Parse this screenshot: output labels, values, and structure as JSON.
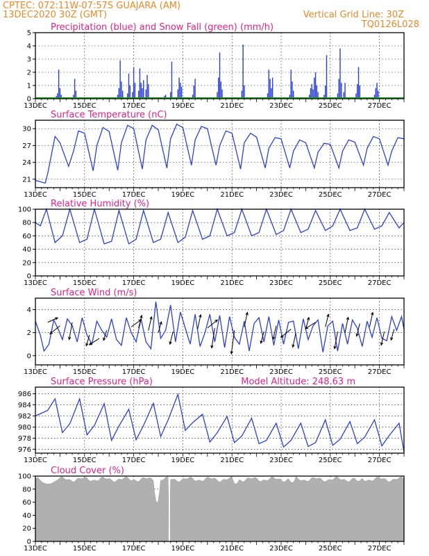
{
  "header": {
    "line1_left": "CPTEC:   072:11W-07:57S   GUAJARA (AM)",
    "line2_left": "13DEC2020 30Z (GMT)",
    "line2_right": "Vertical Grid Line: 30Z",
    "code": "TQ0126L028"
  },
  "colors": {
    "header": "#e8892a",
    "title": "#e0218a",
    "series": "#2a3fd6",
    "snow": "#1aa61a",
    "cloud": "#b0b0b0"
  },
  "chart_data": [
    {
      "id": "precip",
      "type": "bar",
      "title": "Precipitation (blue) and Snow Fall (green) (mm/h)",
      "ylim": [
        0,
        5
      ],
      "yticks": [
        "0",
        "1",
        "2",
        "3",
        "4",
        "5"
      ],
      "xlim": [
        0,
        15
      ],
      "xticks": [
        "13DEC",
        "15DEC",
        "17DEC",
        "19DEC",
        "21DEC",
        "23DEC",
        "25DEC",
        "27DEC"
      ],
      "x_units": "days since 13DEC 00Z",
      "snowfall": [
        [
          0,
          0
        ],
        [
          15,
          0
        ]
      ],
      "values": [
        [
          0.85,
          0.2
        ],
        [
          0.9,
          0.4
        ],
        [
          0.95,
          2.2
        ],
        [
          1.0,
          0.8
        ],
        [
          1.05,
          0.3
        ],
        [
          1.55,
          0.3
        ],
        [
          1.6,
          1.5
        ],
        [
          1.65,
          0.6
        ],
        [
          3.35,
          0.3
        ],
        [
          3.4,
          0.8
        ],
        [
          3.45,
          2.9
        ],
        [
          3.5,
          1.3
        ],
        [
          3.55,
          0.6
        ],
        [
          3.75,
          0.4
        ],
        [
          3.8,
          1.9
        ],
        [
          3.85,
          1.0
        ],
        [
          3.95,
          0.5
        ],
        [
          4.0,
          2.4
        ],
        [
          4.05,
          1.2
        ],
        [
          4.2,
          0.6
        ],
        [
          4.25,
          2.3
        ],
        [
          4.3,
          1.2
        ],
        [
          4.35,
          0.8
        ],
        [
          4.4,
          1.4
        ],
        [
          4.5,
          0.7
        ],
        [
          4.55,
          1.8
        ],
        [
          4.6,
          1.1
        ],
        [
          5.25,
          0.2
        ],
        [
          5.3,
          0.3
        ],
        [
          5.5,
          0.5
        ],
        [
          5.55,
          2.8
        ],
        [
          5.8,
          0.7
        ],
        [
          5.85,
          1.6
        ],
        [
          5.9,
          1.2
        ],
        [
          5.95,
          0.9
        ],
        [
          6.4,
          0.3
        ],
        [
          6.45,
          1.0
        ],
        [
          6.5,
          1.5
        ],
        [
          7.4,
          0.5
        ],
        [
          7.45,
          1.6
        ],
        [
          7.5,
          3.5
        ],
        [
          7.55,
          1.3
        ],
        [
          7.6,
          0.7
        ],
        [
          8.4,
          0.6
        ],
        [
          8.45,
          4.1
        ],
        [
          8.5,
          1.0
        ],
        [
          9.45,
          0.4
        ],
        [
          9.5,
          2.2
        ],
        [
          9.55,
          1.5
        ],
        [
          9.6,
          0.8
        ],
        [
          9.65,
          1.6
        ],
        [
          10.35,
          0.3
        ],
        [
          10.4,
          2.2
        ],
        [
          10.45,
          1.3
        ],
        [
          10.5,
          0.6
        ],
        [
          11.15,
          0.3
        ],
        [
          11.2,
          0.8
        ],
        [
          11.25,
          1.1
        ],
        [
          11.3,
          0.7
        ],
        [
          11.35,
          1.6
        ],
        [
          11.4,
          2.0
        ],
        [
          11.45,
          1.0
        ],
        [
          11.5,
          0.5
        ],
        [
          11.75,
          0.3
        ],
        [
          11.8,
          1.0
        ],
        [
          11.85,
          3.3
        ],
        [
          12.3,
          0.4
        ],
        [
          12.35,
          1.5
        ],
        [
          12.4,
          3.8
        ],
        [
          12.45,
          1.2
        ],
        [
          12.55,
          0.5
        ],
        [
          12.6,
          1.2
        ],
        [
          13.05,
          0.4
        ],
        [
          13.1,
          1.1
        ],
        [
          13.15,
          2.4
        ],
        [
          13.2,
          1.0
        ],
        [
          13.8,
          0.3
        ],
        [
          13.85,
          0.8
        ],
        [
          13.9,
          1.2
        ],
        [
          13.95,
          0.6
        ]
      ]
    },
    {
      "id": "temp",
      "type": "line",
      "title": "Surface Temperature (nC)",
      "ylim": [
        19.5,
        31.5
      ],
      "yticks": [
        "21",
        "24",
        "27",
        "30"
      ],
      "xlim": [
        0,
        15
      ],
      "xticks": [
        "13DEC",
        "15DEC",
        "17DEC",
        "19DEC",
        "21DEC",
        "23DEC",
        "25DEC",
        "27DEC"
      ],
      "x": [
        0,
        0.4,
        0.5,
        0.8,
        1.0,
        1.35,
        1.55,
        1.75,
        2.0,
        2.35,
        2.5,
        2.75,
        3.0,
        3.35,
        3.5,
        3.75,
        4.0,
        4.35,
        4.5,
        4.75,
        5.0,
        5.35,
        5.5,
        5.75,
        6.0,
        6.35,
        6.5,
        6.75,
        7.0,
        7.35,
        7.5,
        7.75,
        8.0,
        8.35,
        8.5,
        8.75,
        9.0,
        9.35,
        9.5,
        9.75,
        10.0,
        10.35,
        10.5,
        10.75,
        11.0,
        11.35,
        11.5,
        11.75,
        12.0,
        12.35,
        12.5,
        12.75,
        13.0,
        13.35,
        13.5,
        13.75,
        14.0,
        14.35,
        14.5,
        14.75,
        15.0
      ],
      "values": [
        20.8,
        20.3,
        22.0,
        28.6,
        27.5,
        23.3,
        26.0,
        29.6,
        29.2,
        22.5,
        27.0,
        30.2,
        29.5,
        22.6,
        27.5,
        30.6,
        30.0,
        22.8,
        28.0,
        30.6,
        29.8,
        23.0,
        28.2,
        30.8,
        30.2,
        23.5,
        28.0,
        30.4,
        30.0,
        23.5,
        27.0,
        29.6,
        29.2,
        22.8,
        27.5,
        29.2,
        28.5,
        23.0,
        26.5,
        28.4,
        28.2,
        23.0,
        26.0,
        28.0,
        27.5,
        23.0,
        25.8,
        27.4,
        27.2,
        23.0,
        26.0,
        28.0,
        27.6,
        23.5,
        26.5,
        28.6,
        28.2,
        23.5,
        26.0,
        28.4,
        28.2
      ]
    },
    {
      "id": "rh",
      "type": "line",
      "title": "Relative Humidity (%)",
      "ylim": [
        0,
        100
      ],
      "yticks": [
        "0",
        "20",
        "40",
        "60",
        "80",
        "100"
      ],
      "xlim": [
        0,
        15
      ],
      "xticks": [
        "13DEC",
        "15DEC",
        "17DEC",
        "19DEC",
        "21DEC",
        "23DEC",
        "25DEC",
        "27DEC"
      ],
      "x": [
        0,
        0.2,
        0.45,
        0.8,
        1.1,
        1.4,
        1.8,
        2.1,
        2.4,
        2.8,
        3.1,
        3.4,
        3.8,
        4.1,
        4.4,
        4.8,
        5.1,
        5.4,
        5.8,
        6.1,
        6.4,
        6.8,
        7.1,
        7.4,
        7.8,
        8.1,
        8.4,
        8.8,
        9.1,
        9.4,
        9.8,
        10.1,
        10.4,
        10.8,
        11.1,
        11.4,
        11.8,
        12.1,
        12.4,
        12.8,
        13.1,
        13.4,
        13.8,
        14.1,
        14.4,
        14.8,
        15.0
      ],
      "values": [
        80,
        75,
        100,
        50,
        60,
        100,
        50,
        55,
        100,
        48,
        52,
        98,
        48,
        55,
        98,
        50,
        55,
        95,
        50,
        58,
        98,
        55,
        60,
        100,
        60,
        65,
        100,
        60,
        65,
        100,
        62,
        68,
        100,
        65,
        70,
        98,
        68,
        75,
        100,
        68,
        72,
        100,
        70,
        75,
        95,
        72,
        80
      ]
    },
    {
      "id": "wind",
      "type": "line",
      "title": "Surface Wind (m/s)",
      "ylim": [
        -0.8,
        5.0
      ],
      "yticks": [
        "0",
        "2",
        "4"
      ],
      "xlim": [
        0,
        15
      ],
      "xticks": [
        "13DEC",
        "15DEC",
        "17DEC",
        "19DEC",
        "21DEC",
        "23DEC",
        "25DEC",
        "27DEC"
      ],
      "x": [
        0.0,
        0.2,
        0.35,
        0.55,
        0.75,
        0.95,
        1.1,
        1.3,
        1.5,
        1.7,
        1.9,
        2.1,
        2.3,
        2.5,
        2.7,
        2.9,
        3.1,
        3.3,
        3.5,
        3.7,
        3.9,
        4.1,
        4.3,
        4.5,
        4.7,
        4.9,
        5.1,
        5.3,
        5.5,
        5.7,
        5.9,
        6.1,
        6.3,
        6.5,
        6.7,
        6.9,
        7.1,
        7.3,
        7.5,
        7.7,
        7.9,
        8.1,
        8.3,
        8.5,
        8.7,
        8.9,
        9.1,
        9.3,
        9.5,
        9.7,
        9.9,
        10.1,
        10.3,
        10.5,
        10.7,
        10.9,
        11.1,
        11.3,
        11.5,
        11.7,
        11.9,
        12.1,
        12.3,
        12.5,
        12.7,
        12.9,
        13.1,
        13.3,
        13.5,
        13.7,
        13.9,
        14.1,
        14.3,
        14.5,
        14.7,
        14.9,
        15.0
      ],
      "values": [
        3.0,
        1.8,
        0.4,
        1.0,
        3.1,
        2.2,
        1.4,
        3.2,
        2.6,
        1.2,
        3.3,
        1.8,
        1.0,
        3.0,
        2.2,
        1.6,
        3.2,
        1.4,
        0.9,
        3.3,
        2.0,
        1.2,
        3.2,
        1.2,
        0.6,
        4.7,
        1.5,
        2.2,
        4.4,
        1.2,
        3.8,
        2.4,
        1.0,
        3.6,
        0.8,
        2.0,
        3.6,
        1.2,
        3.5,
        0.7,
        3.4,
        1.6,
        1.0,
        3.0,
        0.4,
        2.8,
        3.3,
        1.2,
        3.4,
        0.9,
        3.1,
        1.0,
        2.9,
        3.0,
        0.6,
        3.2,
        1.4,
        2.6,
        3.1,
        0.3,
        2.6,
        3.0,
        0.4,
        2.8,
        1.0,
        3.1,
        2.4,
        0.8,
        3.0,
        1.6,
        3.3,
        1.5,
        1.3,
        3.4,
        2.2,
        3.4,
        2.3
      ],
      "arrows": [
        [
          0.5,
          2.9,
          0.5
        ],
        [
          1.0,
          2.6,
          -0.9
        ],
        [
          1.5,
          2.9,
          -1.9
        ],
        [
          2.2,
          1.8,
          -1.2
        ],
        [
          2.6,
          1.5,
          -0.7
        ],
        [
          2.9,
          2.2,
          -1.1
        ],
        [
          3.9,
          2.5,
          0.8
        ],
        [
          4.2,
          2.4,
          1.4
        ],
        [
          4.6,
          2.2,
          1.5
        ],
        [
          5.0,
          2.0,
          1.2
        ],
        [
          5.6,
          2.1,
          -1.4
        ],
        [
          6.6,
          2.3,
          1.6
        ],
        [
          7.0,
          2.4,
          0.9
        ],
        [
          7.3,
          2.4,
          -2.2
        ],
        [
          8.1,
          2.2,
          -2.6
        ],
        [
          8.5,
          2.5,
          1.6
        ],
        [
          9.3,
          2.1,
          -1.3
        ],
        [
          9.8,
          2.6,
          -1.5
        ],
        [
          10.4,
          2.3,
          -0.9
        ],
        [
          10.6,
          2.0,
          -1.6
        ],
        [
          11.0,
          2.3,
          1.3
        ],
        [
          11.4,
          2.9,
          -0.7
        ],
        [
          11.8,
          2.5,
          1.4
        ],
        [
          12.3,
          2.1,
          -1.9
        ],
        [
          12.6,
          2.0,
          1.7
        ],
        [
          13.2,
          2.8,
          -1.4
        ],
        [
          13.6,
          2.5,
          1.6
        ],
        [
          14.2,
          2.1,
          -1.5
        ],
        [
          14.6,
          2.3,
          -1.2
        ]
      ]
    },
    {
      "id": "pres",
      "type": "line",
      "title": "Surface Pressure (hPa)",
      "title2": "Model Altitude: 248.63 m",
      "ylim": [
        975.3,
        987.2
      ],
      "yticks": [
        "976",
        "978",
        "980",
        "982",
        "984",
        "986"
      ],
      "xlim": [
        0,
        15
      ],
      "xticks": [
        "13DEC",
        "15DEC",
        "17DEC",
        "19DEC",
        "21DEC",
        "23DEC",
        "25DEC",
        "27DEC"
      ],
      "x": [
        0.0,
        0.5,
        0.8,
        1.1,
        1.4,
        1.8,
        2.1,
        2.4,
        2.8,
        3.1,
        3.4,
        3.8,
        4.1,
        4.4,
        4.8,
        5.1,
        5.4,
        5.8,
        6.1,
        6.4,
        6.8,
        7.1,
        7.4,
        7.8,
        8.1,
        8.4,
        8.8,
        9.1,
        9.4,
        9.8,
        10.1,
        10.4,
        10.8,
        11.1,
        11.4,
        11.8,
        12.1,
        12.4,
        12.8,
        13.1,
        13.4,
        13.8,
        14.1,
        14.4,
        14.8,
        15.0
      ],
      "values": [
        982.0,
        983.0,
        985.1,
        979.0,
        980.6,
        985.1,
        978.6,
        980.3,
        984.2,
        977.6,
        980.2,
        983.2,
        977.7,
        980.3,
        984.3,
        978.3,
        981.3,
        985.9,
        979.4,
        980.8,
        982.3,
        977.3,
        979.0,
        981.9,
        977.2,
        978.4,
        981.6,
        977.0,
        977.6,
        980.7,
        976.4,
        977.6,
        980.7,
        976.5,
        977.2,
        981.3,
        976.7,
        977.8,
        981.0,
        977.0,
        978.2,
        981.3,
        976.6,
        978.5,
        980.7,
        975.5
      ]
    },
    {
      "id": "cloud",
      "type": "area",
      "title": "Cloud Cover (%)",
      "ylim": [
        0,
        100
      ],
      "yticks": [
        "0",
        "20",
        "40",
        "60",
        "80",
        "100"
      ],
      "xlim": [
        0,
        15
      ],
      "xticks": [
        "13DEC",
        "15DEC",
        "17DEC",
        "19DEC",
        "21DEC",
        "23DEC",
        "25DEC",
        "27DEC"
      ],
      "base": 95,
      "dips": [
        [
          0.1,
          0.9,
          88
        ],
        [
          4.8,
          5.1,
          58
        ],
        [
          5.4,
          5.5,
          0
        ],
        [
          8.0,
          8.3,
          88
        ],
        [
          10.3,
          10.6,
          90
        ],
        [
          13.0,
          13.3,
          92
        ]
      ]
    }
  ]
}
